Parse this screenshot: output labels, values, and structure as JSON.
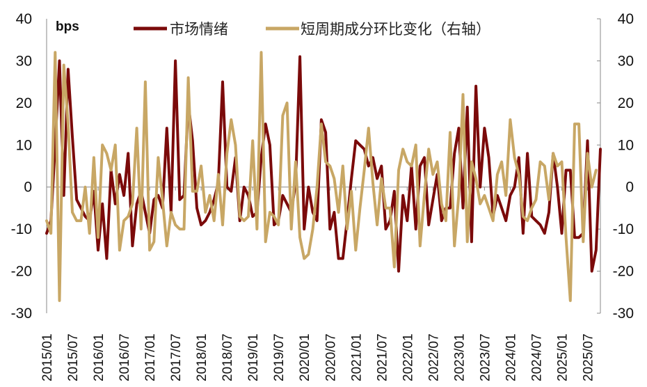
{
  "chart_data": {
    "type": "line",
    "title": "",
    "unit_label": "bps",
    "xlabel": "",
    "ylabel_left": "bps",
    "ylabel_right": "",
    "ylim_left": [
      -30,
      40
    ],
    "ylim_right": [
      -30,
      40
    ],
    "yticks_left": [
      "40",
      "30",
      "20",
      "10",
      "0",
      "-10",
      "-20",
      "-30"
    ],
    "yticks_right": [
      "40",
      "30",
      "20",
      "10",
      "0",
      "-10",
      "-20",
      "-30"
    ],
    "grid": false,
    "legend_position": "top",
    "x_start": "2015/01",
    "x_end": "2025/07",
    "frequency": "monthly",
    "xtick_labels": [
      "2015/01",
      "2015/07",
      "2016/01",
      "2016/07",
      "2017/01",
      "2017/07",
      "2018/01",
      "2018/07",
      "2019/01",
      "2019/07",
      "2020/01",
      "2020/07",
      "2021/01",
      "2021/07",
      "2022/01",
      "2022/07",
      "2023/01",
      "2023/07",
      "2024/01",
      "2024/07",
      "2025/01",
      "2025/07"
    ],
    "series": [
      {
        "name": "市场情绪",
        "axis": "left",
        "color": "#7B0A0A",
        "values": [
          -11,
          -8,
          10,
          30,
          -2,
          28,
          12,
          -3,
          -5,
          -7,
          -8,
          -1,
          -15,
          -4,
          -17,
          4,
          -4,
          3,
          -2,
          8,
          -14,
          -4,
          -1,
          -6,
          -11,
          -3,
          -2,
          -5,
          14,
          -6,
          30,
          -3,
          -2,
          20,
          11,
          -5,
          -9,
          -8,
          -6,
          -3,
          1,
          25,
          0,
          -1,
          7,
          -8,
          0,
          -2,
          -7,
          -6,
          7,
          15,
          10,
          -9,
          -8,
          -2,
          -4,
          -6,
          1,
          31,
          -10,
          0,
          -6,
          -8,
          16,
          13,
          -10,
          -6,
          -17,
          -17,
          -8,
          2,
          11,
          10,
          9,
          5,
          7,
          2,
          5,
          -10,
          -8,
          -1,
          -20,
          -2,
          -8,
          5,
          -10,
          5,
          7,
          -9,
          -3,
          3,
          -8,
          -5,
          -5,
          8,
          14,
          -5,
          19,
          -13,
          24,
          0,
          14,
          7,
          -7,
          -2,
          -5,
          -8,
          -2,
          0,
          7,
          -11,
          8,
          -7,
          -8,
          -9,
          -11,
          -6,
          8,
          0,
          -11,
          4,
          4,
          -12,
          -12,
          -11,
          11,
          -20,
          -15,
          9
        ]
      },
      {
        "name": "短周期成分环比变化（右轴）",
        "axis": "right",
        "color": "#C8A765",
        "values": [
          -8,
          -11,
          32,
          -27,
          29,
          15,
          -6,
          -8,
          -8,
          0,
          -11,
          7,
          -12,
          10,
          8,
          4,
          10,
          -15,
          -8,
          -7,
          -4,
          14,
          -10,
          25,
          -15,
          -13,
          7,
          -3,
          -14,
          -6,
          -9,
          -10,
          -10,
          26,
          -1,
          -1,
          5,
          -6,
          -2,
          -8,
          3,
          -9,
          8,
          16,
          10,
          -7,
          -8,
          -7,
          11,
          -10,
          32,
          -13,
          -6,
          -7,
          -9,
          17,
          20,
          -10,
          6,
          -12,
          -17,
          -16,
          -10,
          0,
          15,
          6,
          5,
          2,
          -6,
          5,
          -10,
          -1,
          -15,
          -5,
          4,
          14,
          1,
          -9,
          2,
          -5,
          -5,
          -19,
          4,
          9,
          6,
          5,
          10,
          -14,
          -2,
          9,
          3,
          6,
          -4,
          -8,
          13,
          -14,
          -2,
          22,
          -13,
          6,
          2,
          -4,
          -2,
          -5,
          -8,
          3,
          6,
          -2,
          16,
          7,
          3,
          -7,
          -8,
          -5,
          -3,
          6,
          5,
          -3,
          8,
          5,
          6,
          -12,
          -27,
          15,
          15,
          -13,
          8,
          0,
          4
        ]
      }
    ]
  },
  "legend": {
    "items": [
      {
        "label": "市场情绪",
        "color": "#7B0A0A"
      },
      {
        "label": "短周期成分环比变化（右轴）",
        "color": "#C8A765"
      }
    ]
  }
}
